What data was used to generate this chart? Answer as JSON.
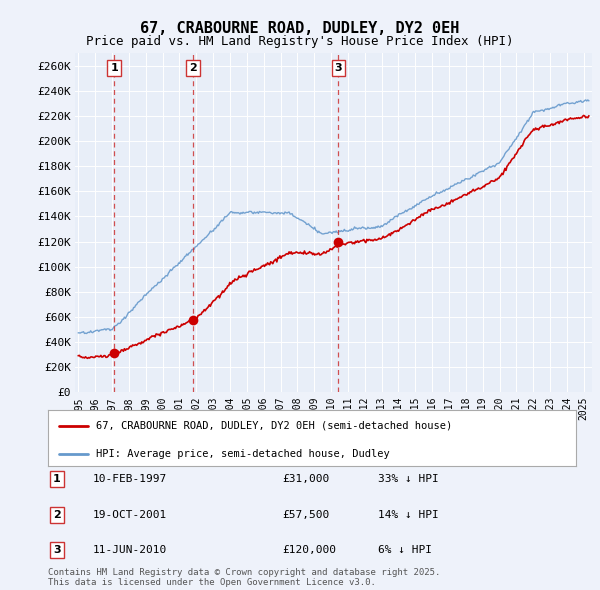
{
  "title": "67, CRABOURNE ROAD, DUDLEY, DY2 0EH",
  "subtitle": "Price paid vs. HM Land Registry's House Price Index (HPI)",
  "background_color": "#eef2fa",
  "plot_bg_color": "#e8eef8",
  "sales": [
    {
      "date_num": 1997.12,
      "price": 31000,
      "label": "1"
    },
    {
      "date_num": 2001.8,
      "price": 57500,
      "label": "2"
    },
    {
      "date_num": 2010.44,
      "price": 120000,
      "label": "3"
    }
  ],
  "sale_annotations": [
    {
      "label": "1",
      "date": "10-FEB-1997",
      "price": "£31,000",
      "pct": "33% ↓ HPI"
    },
    {
      "label": "2",
      "date": "19-OCT-2001",
      "price": "£57,500",
      "pct": "14% ↓ HPI"
    },
    {
      "label": "3",
      "date": "11-JUN-2010",
      "price": "£120,000",
      "pct": "6% ↓ HPI"
    }
  ],
  "legend_line1": "67, CRABOURNE ROAD, DUDLEY, DY2 0EH (semi-detached house)",
  "legend_line2": "HPI: Average price, semi-detached house, Dudley",
  "footer": "Contains HM Land Registry data © Crown copyright and database right 2025.\nThis data is licensed under the Open Government Licence v3.0.",
  "ylim": [
    0,
    270000
  ],
  "xlim": [
    1994.8,
    2025.5
  ],
  "yticks": [
    0,
    20000,
    40000,
    60000,
    80000,
    100000,
    120000,
    140000,
    160000,
    180000,
    200000,
    220000,
    240000,
    260000
  ],
  "ytick_labels": [
    "£0",
    "£20K",
    "£40K",
    "£60K",
    "£80K",
    "£100K",
    "£120K",
    "£140K",
    "£160K",
    "£180K",
    "£200K",
    "£220K",
    "£240K",
    "£260K"
  ],
  "xticks": [
    1995,
    1996,
    1997,
    1998,
    1999,
    2000,
    2001,
    2002,
    2003,
    2004,
    2005,
    2006,
    2007,
    2008,
    2009,
    2010,
    2011,
    2012,
    2013,
    2014,
    2015,
    2016,
    2017,
    2018,
    2019,
    2020,
    2021,
    2022,
    2023,
    2024,
    2025
  ],
  "hpi_line_color": "#6699cc",
  "red_line_color": "#cc0000",
  "red_dot_color": "#cc0000",
  "dashed_line_color": "#cc3333",
  "grid_color": "#ffffff",
  "box_edge_color": "#cc3333"
}
